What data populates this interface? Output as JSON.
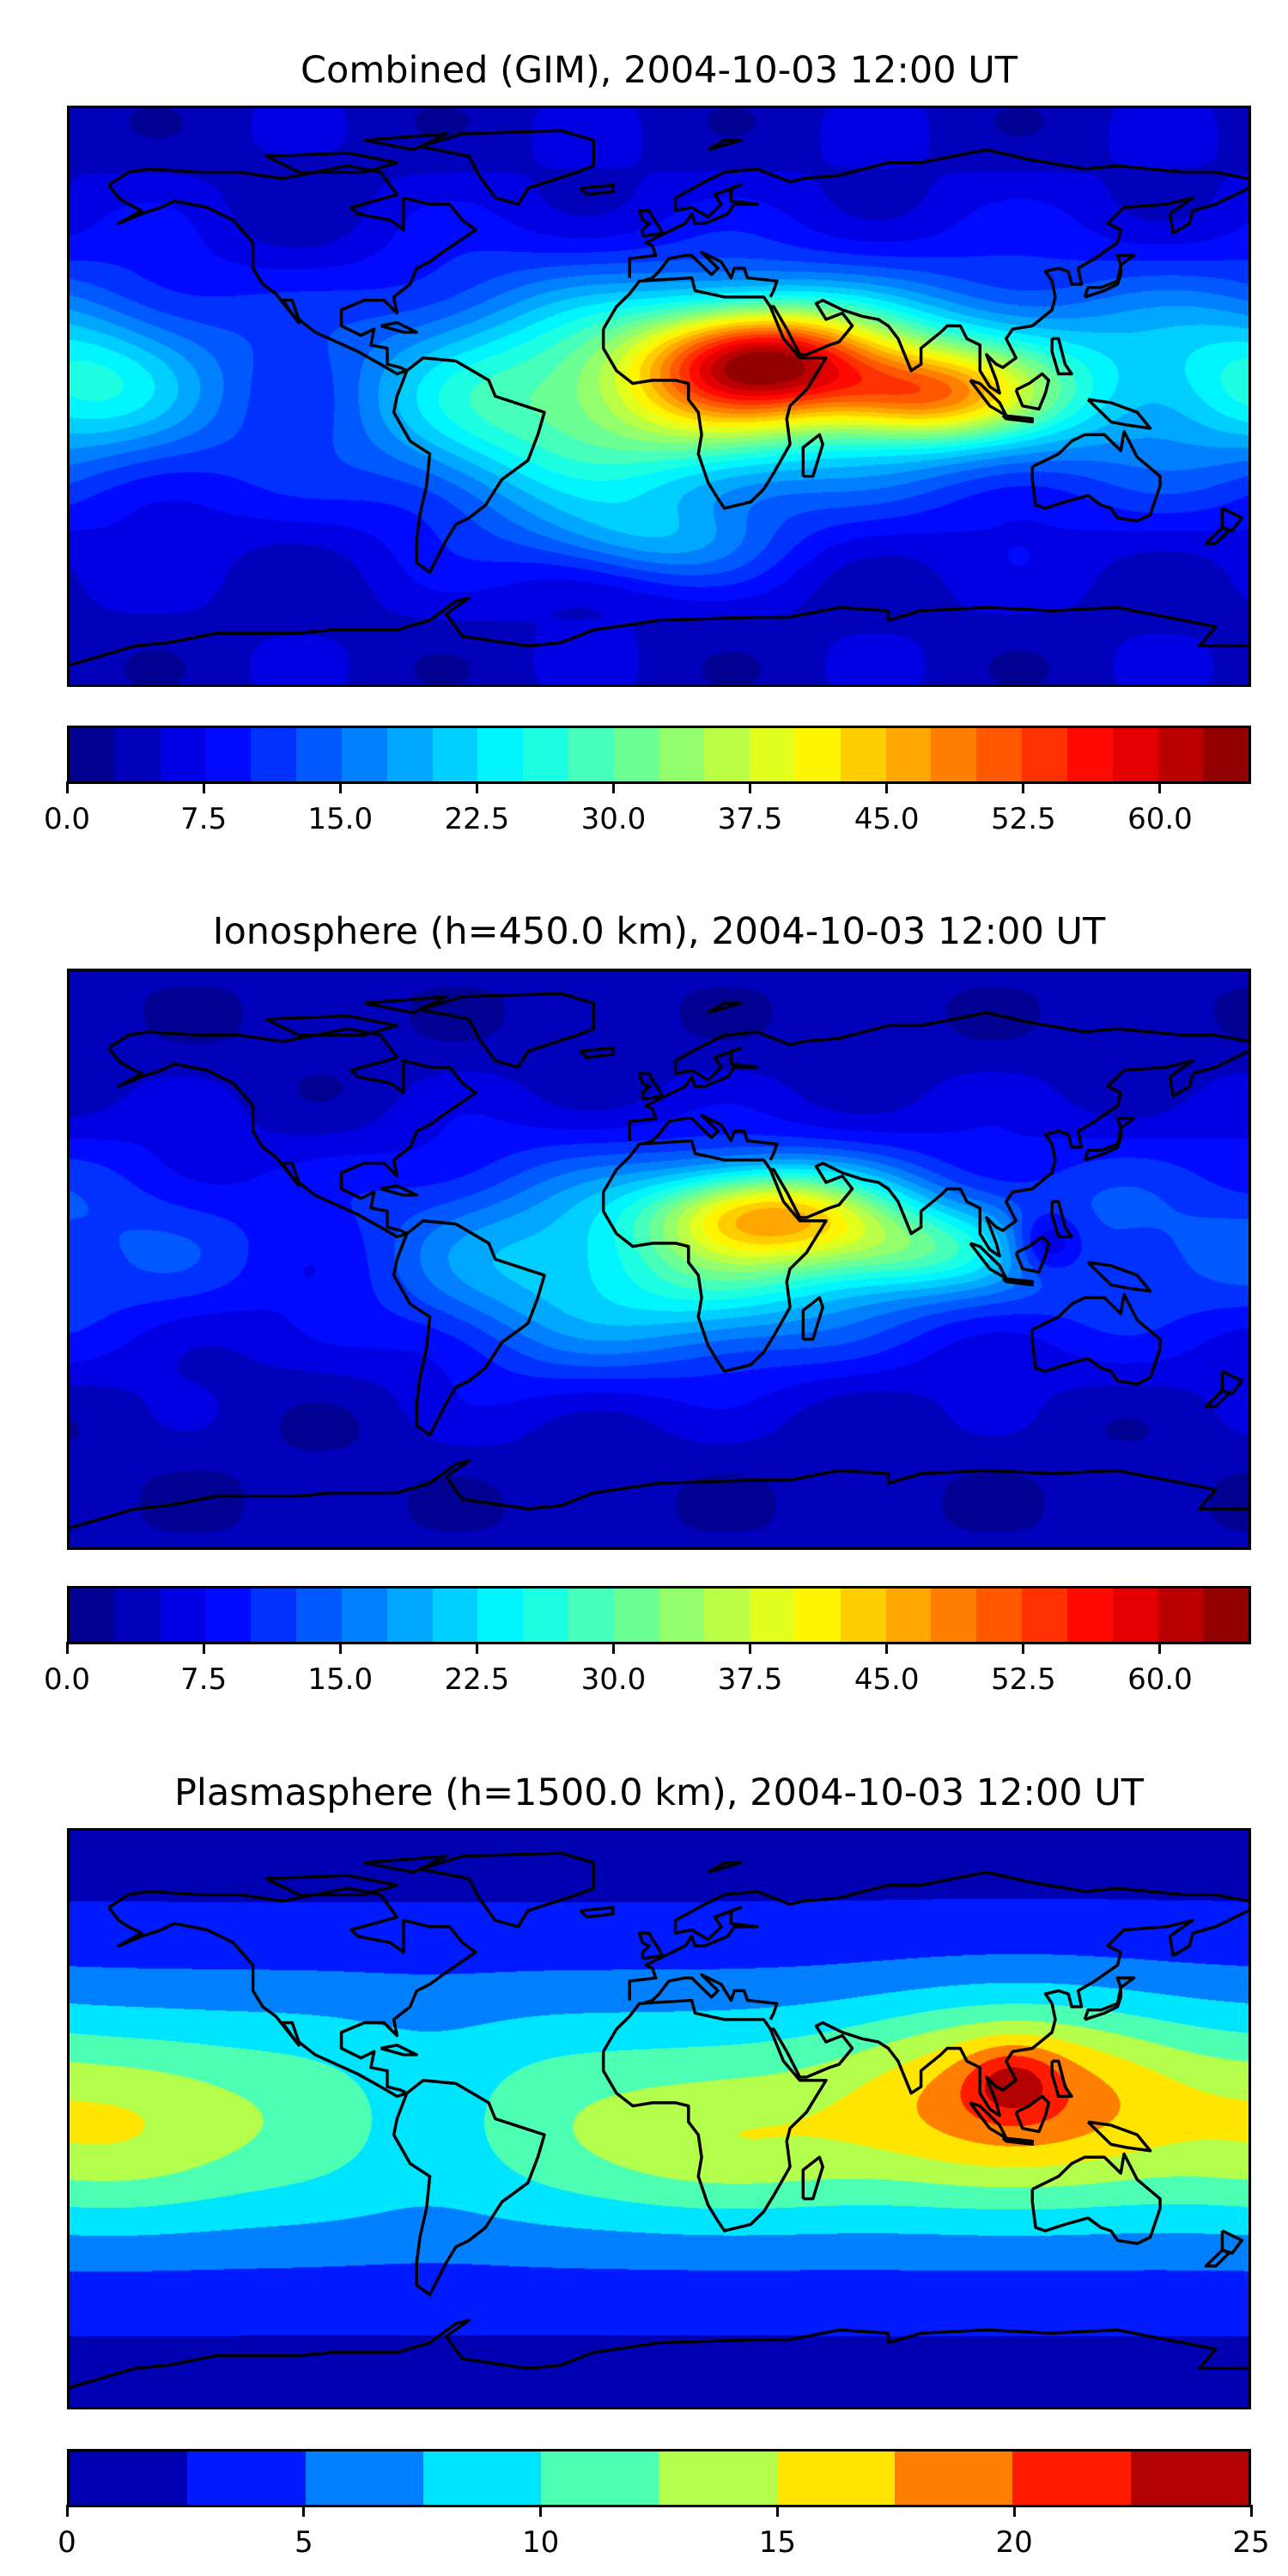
{
  "chart_data": [
    {
      "type": "heatmap",
      "title": "Combined (GIM), 2004-10-03 12:00 UT",
      "projection": "plate-carree",
      "xlim": [
        -180,
        180
      ],
      "ylim": [
        -90,
        90
      ],
      "colormap": "jet",
      "levels": {
        "min": 0,
        "max": 65,
        "step": 2.5
      },
      "colorbar_ticks": [
        "0.0",
        "7.5",
        "15.0",
        "22.5",
        "30.0",
        "37.5",
        "45.0",
        "52.5",
        "60.0"
      ],
      "colorbar_tick_values": [
        0,
        7.5,
        15,
        22.5,
        30,
        37.5,
        45,
        52.5,
        60
      ],
      "features": [
        {
          "name": "peak over northeast Africa / Arabia",
          "lon": 35,
          "lat": 12,
          "value": 55
        },
        {
          "name": "peak over Indian Ocean",
          "lon": 80,
          "lat": 0,
          "value": 50
        },
        {
          "name": "high-latitude background",
          "value": 5
        }
      ]
    },
    {
      "type": "heatmap",
      "title": "Ionosphere  (h=450.0 km), 2004-10-03 12:00 UT",
      "projection": "plate-carree",
      "xlim": [
        -180,
        180
      ],
      "ylim": [
        -90,
        90
      ],
      "colormap": "jet",
      "levels": {
        "min": 0,
        "max": 65,
        "step": 2.5
      },
      "colorbar_ticks": [
        "0.0",
        "7.5",
        "15.0",
        "22.5",
        "30.0",
        "37.5",
        "45.0",
        "52.5",
        "60.0"
      ],
      "colorbar_tick_values": [
        0,
        7.5,
        15,
        22.5,
        30,
        37.5,
        45,
        52.5,
        60
      ],
      "features": [
        {
          "name": "peak over northeast Africa / Arabia",
          "lon": 35,
          "lat": 15,
          "value": 42
        },
        {
          "name": "minimum near Philippines",
          "lon": 115,
          "lat": 5,
          "value": 8
        }
      ]
    },
    {
      "type": "heatmap",
      "title": "Plasmasphere (h=1500.0 km), 2004-10-03 12:00 UT",
      "projection": "plate-carree",
      "xlim": [
        -180,
        180
      ],
      "ylim": [
        -90,
        90
      ],
      "colormap": "jet",
      "levels": {
        "min": 0,
        "max": 25,
        "step": 2.5
      },
      "colorbar_ticks": [
        "0",
        "5",
        "10",
        "15",
        "20",
        "25"
      ],
      "colorbar_tick_values": [
        0,
        5,
        10,
        15,
        20,
        25
      ],
      "features": [
        {
          "name": "peak over Southeast Asia",
          "lon": 105,
          "lat": 12,
          "value": 21
        },
        {
          "name": "central Pacific maximum",
          "lon": -165,
          "lat": -5,
          "value": 12
        }
      ]
    }
  ]
}
